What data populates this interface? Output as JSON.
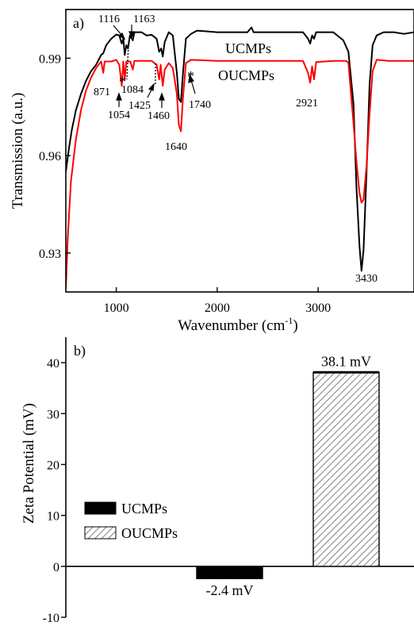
{
  "chart_data": [
    {
      "panel": "a)",
      "type": "line",
      "xlabel": "Wavenumber (cm⁻¹)",
      "ylabel": "Transmission (a.u.)",
      "xlim": [
        500,
        3950
      ],
      "ylim": [
        0.918,
        1.005
      ],
      "xticks": [
        1000,
        2000,
        3000
      ],
      "yticks": [
        0.93,
        0.96,
        0.99
      ],
      "grid": false,
      "series": [
        {
          "name": "UCMPs",
          "color": "#000000",
          "points": [
            [
              500,
              0.955
            ],
            [
              530,
              0.962
            ],
            [
              560,
              0.968
            ],
            [
              600,
              0.974
            ],
            [
              650,
              0.979
            ],
            [
              700,
              0.983
            ],
            [
              750,
              0.986
            ],
            [
              800,
              0.988
            ],
            [
              850,
              0.991
            ],
            [
              871,
              0.9915
            ],
            [
              900,
              0.994
            ],
            [
              950,
              0.996
            ],
            [
              1000,
              0.9973
            ],
            [
              1030,
              0.997
            ],
            [
              1054,
              0.9945
            ],
            [
              1070,
              0.996
            ],
            [
              1084,
              0.991
            ],
            [
              1100,
              0.994
            ],
            [
              1116,
              0.993
            ],
            [
              1135,
              0.997
            ],
            [
              1163,
              0.9955
            ],
            [
              1180,
              0.998
            ],
            [
              1250,
              0.998
            ],
            [
              1300,
              0.997
            ],
            [
              1350,
              0.9972
            ],
            [
              1400,
              0.996
            ],
            [
              1425,
              0.992
            ],
            [
              1445,
              0.993
            ],
            [
              1460,
              0.9905
            ],
            [
              1480,
              0.995
            ],
            [
              1520,
              0.998
            ],
            [
              1560,
              0.997
            ],
            [
              1600,
              0.9855
            ],
            [
              1620,
              0.9775
            ],
            [
              1640,
              0.9765
            ],
            [
              1660,
              0.985
            ],
            [
              1690,
              0.996
            ],
            [
              1740,
              0.9975
            ],
            [
              1800,
              0.9985
            ],
            [
              2000,
              0.998
            ],
            [
              2300,
              0.998
            ],
            [
              2340,
              0.9995
            ],
            [
              2360,
              0.998
            ],
            [
              2850,
              0.998
            ],
            [
              2900,
              0.996
            ],
            [
              2921,
              0.9945
            ],
            [
              2940,
              0.997
            ],
            [
              2960,
              0.996
            ],
            [
              2980,
              0.998
            ],
            [
              3150,
              0.998
            ],
            [
              3250,
              0.9955
            ],
            [
              3300,
              0.992
            ],
            [
              3350,
              0.976
            ],
            [
              3380,
              0.95
            ],
            [
              3410,
              0.932
            ],
            [
              3430,
              0.9245
            ],
            [
              3450,
              0.931
            ],
            [
              3480,
              0.955
            ],
            [
              3510,
              0.982
            ],
            [
              3540,
              0.994
            ],
            [
              3580,
              0.997
            ],
            [
              3650,
              0.998
            ],
            [
              3750,
              0.998
            ],
            [
              3850,
              0.9975
            ],
            [
              3950,
              0.998
            ]
          ]
        },
        {
          "name": "OUCMPs",
          "color": "#ff0000",
          "points": [
            [
              500,
              0.919
            ],
            [
              520,
              0.935
            ],
            [
              550,
              0.952
            ],
            [
              600,
              0.965
            ],
            [
              650,
              0.974
            ],
            [
              700,
              0.98
            ],
            [
              750,
              0.984
            ],
            [
              800,
              0.987
            ],
            [
              850,
              0.989
            ],
            [
              871,
              0.9855
            ],
            [
              885,
              0.989
            ],
            [
              950,
              0.989
            ],
            [
              1000,
              0.9895
            ],
            [
              1030,
              0.988
            ],
            [
              1054,
              0.9815
            ],
            [
              1070,
              0.989
            ],
            [
              1084,
              0.9835
            ],
            [
              1100,
              0.989
            ],
            [
              1140,
              0.989
            ],
            [
              1163,
              0.9865
            ],
            [
              1180,
              0.9892
            ],
            [
              1350,
              0.9892
            ],
            [
              1400,
              0.988
            ],
            [
              1425,
              0.9835
            ],
            [
              1440,
              0.988
            ],
            [
              1460,
              0.9815
            ],
            [
              1480,
              0.9865
            ],
            [
              1520,
              0.9885
            ],
            [
              1560,
              0.987
            ],
            [
              1600,
              0.979
            ],
            [
              1620,
              0.9695
            ],
            [
              1640,
              0.9675
            ],
            [
              1660,
              0.9775
            ],
            [
              1690,
              0.9885
            ],
            [
              1740,
              0.9895
            ],
            [
              2000,
              0.9892
            ],
            [
              2850,
              0.9892
            ],
            [
              2900,
              0.9855
            ],
            [
              2921,
              0.9825
            ],
            [
              2940,
              0.9875
            ],
            [
              2960,
              0.9835
            ],
            [
              2980,
              0.9888
            ],
            [
              3150,
              0.9892
            ],
            [
              3280,
              0.9892
            ],
            [
              3300,
              0.9885
            ],
            [
              3350,
              0.97
            ],
            [
              3380,
              0.958
            ],
            [
              3410,
              0.9485
            ],
            [
              3430,
              0.9455
            ],
            [
              3450,
              0.9465
            ],
            [
              3480,
              0.957
            ],
            [
              3510,
              0.973
            ],
            [
              3540,
              0.986
            ],
            [
              3580,
              0.9895
            ],
            [
              3700,
              0.9892
            ],
            [
              3950,
              0.9892
            ]
          ]
        }
      ],
      "legend": [
        {
          "name": "UCMPs",
          "color": "#000000"
        },
        {
          "name": "OUCMPs",
          "color": "#ff0000"
        }
      ],
      "annotations": [
        "1116",
        "1163",
        "871",
        "1054",
        "1084",
        "1425",
        "1460",
        "1640",
        "1740",
        "2921",
        "3430",
        "*",
        "*"
      ]
    },
    {
      "panel": "b)",
      "type": "bar",
      "ylabel": "Zeta Potential (mV)",
      "ylim": [
        -10,
        45
      ],
      "yticks": [
        -10,
        0,
        10,
        20,
        30,
        40
      ],
      "grid": false,
      "series": [
        {
          "name": "UCMPs",
          "value": -2.4,
          "label": "-2.4 mV",
          "fill": "solid-black"
        },
        {
          "name": "OUCMPs",
          "value": 38.1,
          "label": "38.1 mV",
          "fill": "diagonal-hatch-gray"
        }
      ],
      "legend_position": "left"
    }
  ]
}
